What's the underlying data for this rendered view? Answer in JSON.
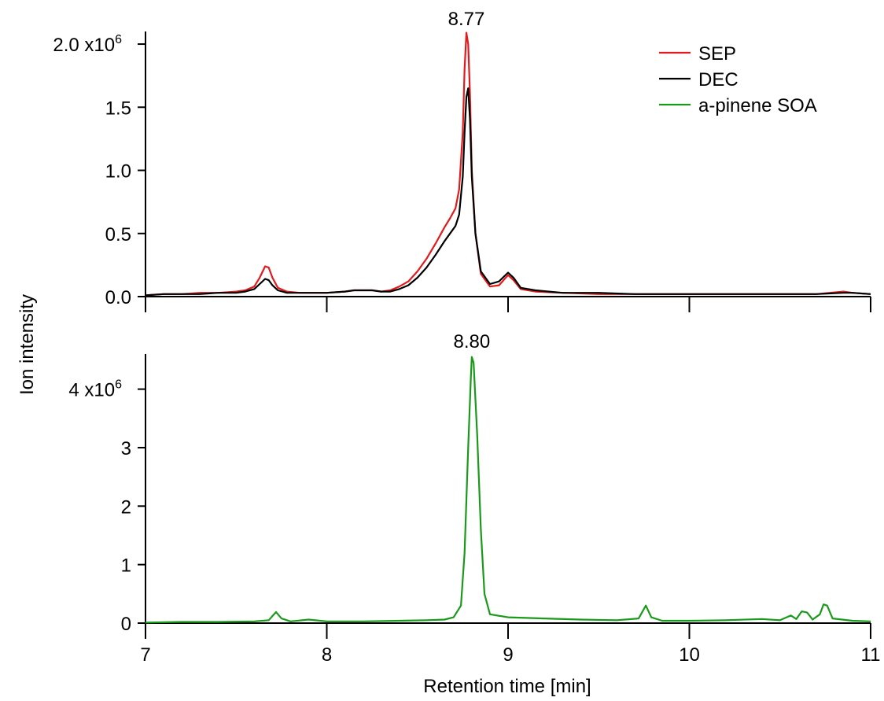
{
  "chart_data": [
    {
      "type": "line",
      "panel": "top",
      "xlim": [
        7,
        11
      ],
      "ylim": [
        0,
        2.1
      ],
      "y_scale_note": "x10^6",
      "yticks": [
        {
          "value": 0,
          "label": "0.0"
        },
        {
          "value": 0.5,
          "label": "0.5"
        },
        {
          "value": 1.0,
          "label": "1.0"
        },
        {
          "value": 1.5,
          "label": "1.5"
        },
        {
          "value": 2.0,
          "label": "2.0 x10",
          "exp": "6"
        }
      ],
      "annotation": {
        "x": 8.77,
        "text": "8.77"
      },
      "series": [
        {
          "name": "SEP",
          "color": "#e31a1c",
          "points": [
            [
              7.0,
              0.01
            ],
            [
              7.1,
              0.02
            ],
            [
              7.2,
              0.02
            ],
            [
              7.3,
              0.03
            ],
            [
              7.4,
              0.03
            ],
            [
              7.5,
              0.04
            ],
            [
              7.55,
              0.05
            ],
            [
              7.6,
              0.08
            ],
            [
              7.63,
              0.15
            ],
            [
              7.66,
              0.24
            ],
            [
              7.68,
              0.23
            ],
            [
              7.7,
              0.15
            ],
            [
              7.73,
              0.07
            ],
            [
              7.78,
              0.04
            ],
            [
              7.85,
              0.03
            ],
            [
              7.9,
              0.03
            ],
            [
              8.0,
              0.03
            ],
            [
              8.1,
              0.04
            ],
            [
              8.15,
              0.05
            ],
            [
              8.2,
              0.05
            ],
            [
              8.25,
              0.05
            ],
            [
              8.3,
              0.04
            ],
            [
              8.35,
              0.05
            ],
            [
              8.4,
              0.08
            ],
            [
              8.45,
              0.12
            ],
            [
              8.5,
              0.2
            ],
            [
              8.55,
              0.3
            ],
            [
              8.6,
              0.42
            ],
            [
              8.65,
              0.55
            ],
            [
              8.68,
              0.62
            ],
            [
              8.71,
              0.7
            ],
            [
              8.73,
              0.85
            ],
            [
              8.75,
              1.3
            ],
            [
              8.76,
              1.8
            ],
            [
              8.77,
              2.09
            ],
            [
              8.78,
              2.0
            ],
            [
              8.79,
              1.6
            ],
            [
              8.8,
              1.0
            ],
            [
              8.82,
              0.5
            ],
            [
              8.85,
              0.18
            ],
            [
              8.9,
              0.08
            ],
            [
              8.95,
              0.09
            ],
            [
              9.0,
              0.17
            ],
            [
              9.03,
              0.13
            ],
            [
              9.07,
              0.06
            ],
            [
              9.15,
              0.04
            ],
            [
              9.3,
              0.03
            ],
            [
              9.5,
              0.02
            ],
            [
              9.7,
              0.02
            ],
            [
              9.9,
              0.02
            ],
            [
              10.1,
              0.02
            ],
            [
              10.3,
              0.02
            ],
            [
              10.5,
              0.02
            ],
            [
              10.7,
              0.02
            ],
            [
              10.85,
              0.04
            ],
            [
              10.9,
              0.03
            ],
            [
              11.0,
              0.02
            ]
          ]
        },
        {
          "name": "DEC",
          "color": "#000000",
          "points": [
            [
              7.0,
              0.01
            ],
            [
              7.1,
              0.02
            ],
            [
              7.2,
              0.02
            ],
            [
              7.3,
              0.02
            ],
            [
              7.4,
              0.03
            ],
            [
              7.5,
              0.03
            ],
            [
              7.55,
              0.04
            ],
            [
              7.6,
              0.06
            ],
            [
              7.63,
              0.1
            ],
            [
              7.66,
              0.14
            ],
            [
              7.68,
              0.13
            ],
            [
              7.7,
              0.09
            ],
            [
              7.73,
              0.05
            ],
            [
              7.78,
              0.03
            ],
            [
              7.85,
              0.03
            ],
            [
              7.9,
              0.03
            ],
            [
              8.0,
              0.03
            ],
            [
              8.1,
              0.04
            ],
            [
              8.15,
              0.05
            ],
            [
              8.2,
              0.05
            ],
            [
              8.25,
              0.05
            ],
            [
              8.3,
              0.04
            ],
            [
              8.35,
              0.04
            ],
            [
              8.4,
              0.06
            ],
            [
              8.45,
              0.09
            ],
            [
              8.5,
              0.15
            ],
            [
              8.55,
              0.23
            ],
            [
              8.6,
              0.33
            ],
            [
              8.65,
              0.44
            ],
            [
              8.68,
              0.5
            ],
            [
              8.71,
              0.56
            ],
            [
              8.73,
              0.65
            ],
            [
              8.75,
              0.95
            ],
            [
              8.76,
              1.3
            ],
            [
              8.77,
              1.58
            ],
            [
              8.78,
              1.65
            ],
            [
              8.79,
              1.4
            ],
            [
              8.8,
              0.95
            ],
            [
              8.82,
              0.5
            ],
            [
              8.85,
              0.2
            ],
            [
              8.9,
              0.1
            ],
            [
              8.95,
              0.12
            ],
            [
              9.0,
              0.19
            ],
            [
              9.03,
              0.15
            ],
            [
              9.07,
              0.07
            ],
            [
              9.15,
              0.05
            ],
            [
              9.3,
              0.03
            ],
            [
              9.5,
              0.03
            ],
            [
              9.7,
              0.02
            ],
            [
              9.9,
              0.02
            ],
            [
              10.1,
              0.02
            ],
            [
              10.3,
              0.02
            ],
            [
              10.5,
              0.02
            ],
            [
              10.7,
              0.02
            ],
            [
              10.85,
              0.03
            ],
            [
              10.9,
              0.03
            ],
            [
              11.0,
              0.02
            ]
          ]
        }
      ]
    },
    {
      "type": "line",
      "panel": "bottom",
      "xlim": [
        7,
        11
      ],
      "ylim": [
        0,
        4.6
      ],
      "y_scale_note": "x10^6",
      "yticks": [
        {
          "value": 0,
          "label": "0"
        },
        {
          "value": 1,
          "label": "1"
        },
        {
          "value": 2,
          "label": "2"
        },
        {
          "value": 3,
          "label": "3"
        },
        {
          "value": 4,
          "label": "4 x10",
          "exp": "6"
        }
      ],
      "xticks": [
        {
          "value": 7,
          "label": "7"
        },
        {
          "value": 8,
          "label": "8"
        },
        {
          "value": 9,
          "label": "9"
        },
        {
          "value": 10,
          "label": "10"
        },
        {
          "value": 11,
          "label": "11"
        }
      ],
      "annotation": {
        "x": 8.8,
        "text": "8.80"
      },
      "series": [
        {
          "name": "a-pinene SOA",
          "color": "#1a9a1a",
          "points": [
            [
              7.0,
              0.01
            ],
            [
              7.2,
              0.02
            ],
            [
              7.4,
              0.02
            ],
            [
              7.6,
              0.03
            ],
            [
              7.68,
              0.05
            ],
            [
              7.72,
              0.19
            ],
            [
              7.75,
              0.08
            ],
            [
              7.8,
              0.03
            ],
            [
              7.9,
              0.06
            ],
            [
              8.0,
              0.03
            ],
            [
              8.2,
              0.03
            ],
            [
              8.4,
              0.04
            ],
            [
              8.55,
              0.05
            ],
            [
              8.65,
              0.06
            ],
            [
              8.7,
              0.1
            ],
            [
              8.74,
              0.3
            ],
            [
              8.76,
              1.2
            ],
            [
              8.78,
              3.0
            ],
            [
              8.795,
              4.2
            ],
            [
              8.8,
              4.55
            ],
            [
              8.81,
              4.45
            ],
            [
              8.83,
              3.2
            ],
            [
              8.85,
              1.6
            ],
            [
              8.87,
              0.5
            ],
            [
              8.9,
              0.15
            ],
            [
              9.0,
              0.1
            ],
            [
              9.2,
              0.08
            ],
            [
              9.4,
              0.06
            ],
            [
              9.6,
              0.05
            ],
            [
              9.72,
              0.08
            ],
            [
              9.76,
              0.3
            ],
            [
              9.79,
              0.1
            ],
            [
              9.85,
              0.04
            ],
            [
              10.0,
              0.04
            ],
            [
              10.2,
              0.05
            ],
            [
              10.4,
              0.07
            ],
            [
              10.5,
              0.05
            ],
            [
              10.56,
              0.13
            ],
            [
              10.59,
              0.07
            ],
            [
              10.62,
              0.2
            ],
            [
              10.65,
              0.18
            ],
            [
              10.68,
              0.06
            ],
            [
              10.72,
              0.15
            ],
            [
              10.74,
              0.32
            ],
            [
              10.76,
              0.3
            ],
            [
              10.79,
              0.08
            ],
            [
              10.9,
              0.04
            ],
            [
              11.0,
              0.03
            ]
          ]
        }
      ]
    }
  ],
  "axes": {
    "ylabel": "Ion intensity",
    "xlabel": "Retention time [min]"
  },
  "legend": {
    "placement": "top-right",
    "items": [
      {
        "label": "SEP",
        "color": "#e31a1c"
      },
      {
        "label": "DEC",
        "color": "#000000"
      },
      {
        "label": "a-pinene SOA",
        "color": "#1a9a1a"
      }
    ]
  }
}
